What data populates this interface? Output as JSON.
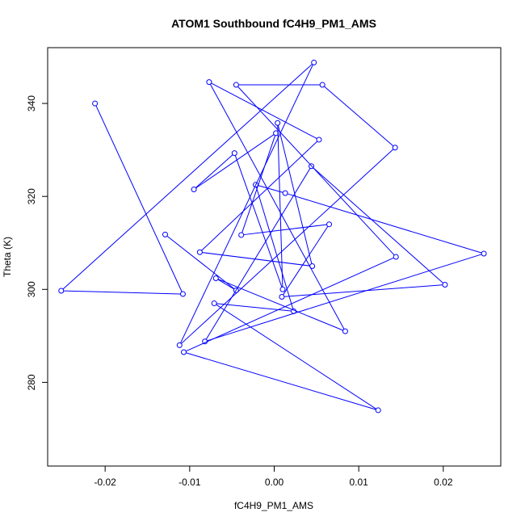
{
  "chart_data": {
    "type": "line",
    "title": "ATOM1 Southbound fC4H9_PM1_AMS",
    "xlabel": "fC4H9_PM1_AMS",
    "ylabel": "Theta (K)",
    "xlim": [
      -0.0268,
      0.0268
    ],
    "ylim": [
      262,
      352
    ],
    "grid": false,
    "legend": "none",
    "marker": "open-circle",
    "color": "#0000ff",
    "x_ticks": [
      -0.02,
      -0.01,
      0.0,
      0.01,
      0.02
    ],
    "x_tick_labels": [
      "-0.02",
      "-0.01",
      "0.00",
      "0.01",
      "0.02"
    ],
    "y_ticks": [
      280,
      300,
      320,
      340
    ],
    "y_tick_labels": [
      "280",
      "300",
      "320",
      "340"
    ],
    "series": [
      {
        "x": [
          -0.0212,
          -0.0108,
          -0.0252,
          0.0047,
          -0.0112,
          0.0143,
          0.0057,
          -0.0045,
          0.0144,
          -0.0107,
          0.0123,
          -0.0071,
          0.0023,
          -0.0022,
          0.0013,
          0.0248,
          -0.0082,
          0.0044,
          0.0202,
          0.0009,
          0.0065,
          -0.0039,
          0.0002,
          -0.0095,
          -0.0047,
          0.001,
          0.0004,
          0.0045,
          -0.0088,
          0.0053,
          -0.0077,
          0.0084,
          -0.0069,
          -0.0045,
          -0.0129
        ],
        "y": [
          340,
          299,
          299.7,
          348.8,
          288,
          330.5,
          344,
          344,
          307,
          286.5,
          274,
          297,
          295.3,
          322.5,
          320.7,
          307.7,
          288.8,
          326.5,
          301,
          298.4,
          314,
          311.7,
          333.6,
          321.5,
          329.3,
          300,
          335.8,
          305,
          308,
          332.2,
          344.6,
          291,
          302.4,
          299.8,
          311.8
        ]
      }
    ]
  }
}
